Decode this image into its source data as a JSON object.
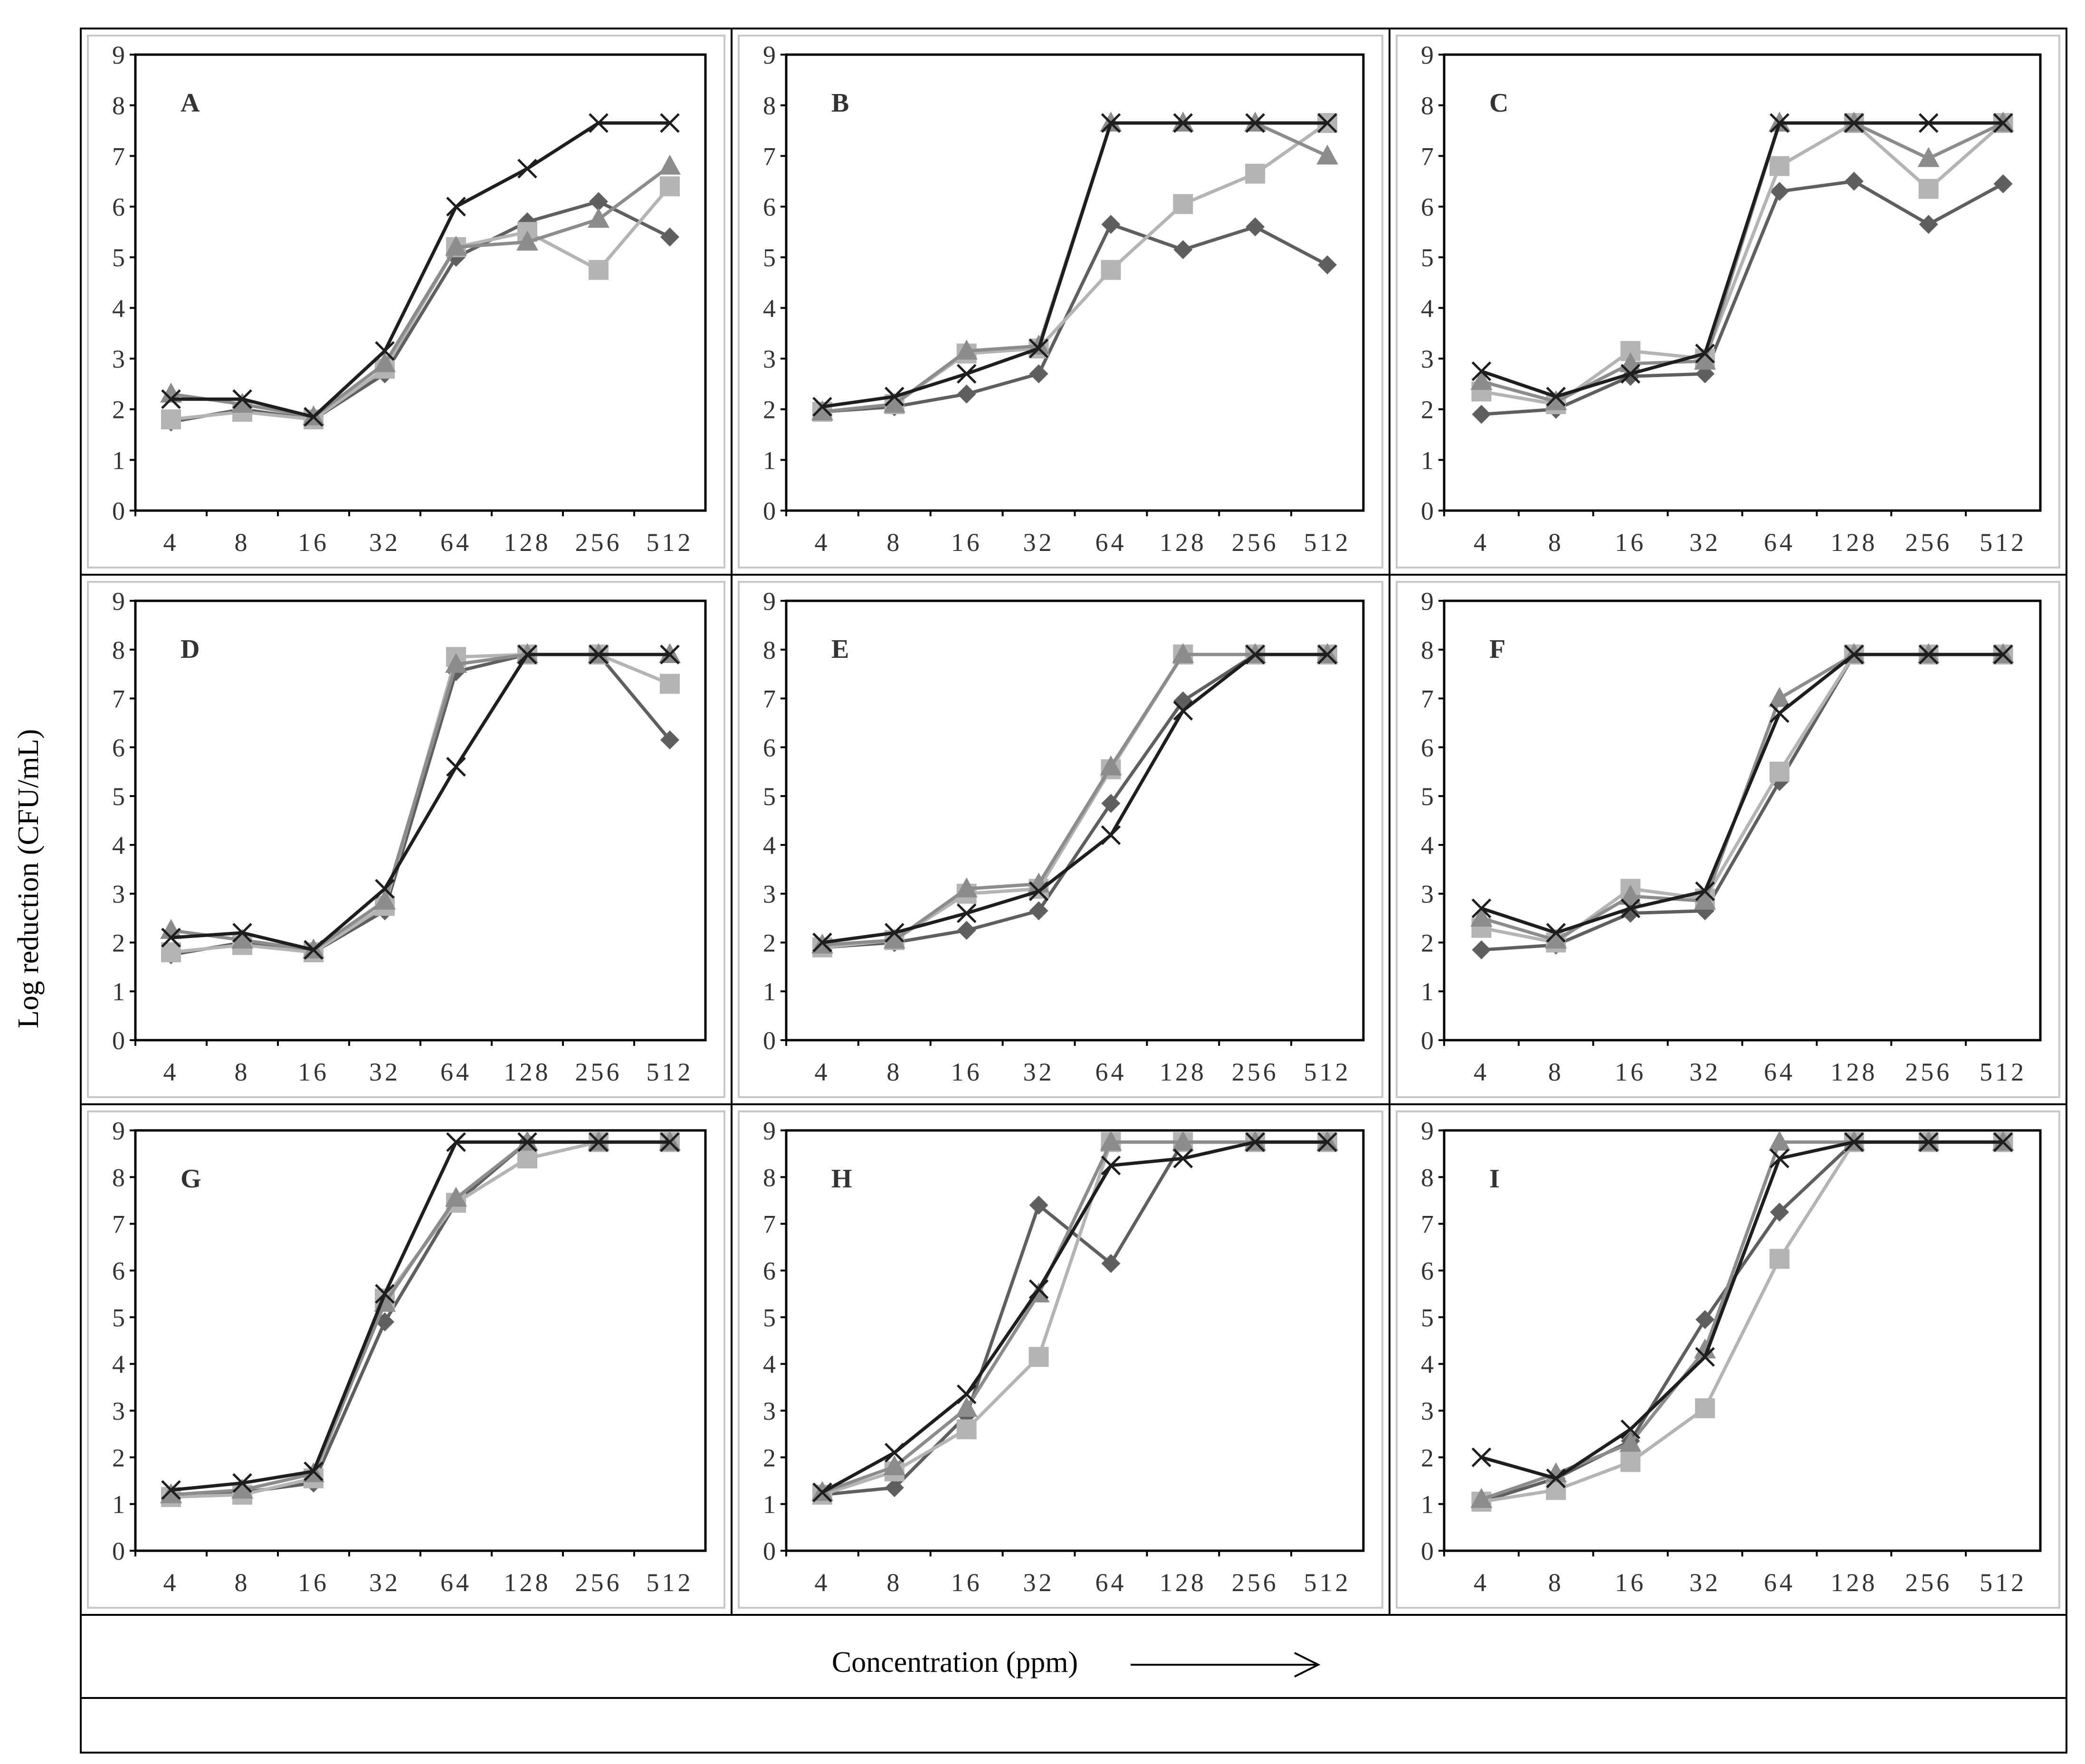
{
  "ylabel": "Log reduction (CFU/mL)",
  "xlabel": "Concentration (ppm)",
  "arrow": "→",
  "colors": {
    "diamond": "#5f5f5f",
    "square": "#b4b4b4",
    "triangle": "#8c8c8c",
    "cross": "#1e1e1e",
    "frame": "#000000",
    "panel_border": "#c8c8c8"
  },
  "chart_data": [
    {
      "type": "line",
      "title": "A",
      "categories": [
        "4",
        "8",
        "16",
        "32",
        "64",
        "128",
        "256",
        "512"
      ],
      "ylim": [
        0,
        9
      ],
      "yticks": [
        "0",
        "1",
        "2",
        "3",
        "4",
        "5",
        "6",
        "7",
        "8",
        "9"
      ],
      "series": [
        {
          "name": "diamond",
          "values": [
            1.75,
            2.0,
            1.8,
            2.7,
            5.0,
            5.7,
            6.1,
            5.4
          ]
        },
        {
          "name": "square",
          "values": [
            1.8,
            1.95,
            1.8,
            2.8,
            5.2,
            5.5,
            4.75,
            6.4
          ]
        },
        {
          "name": "triangle",
          "values": [
            2.3,
            2.1,
            1.85,
            2.9,
            5.2,
            5.3,
            5.75,
            6.8
          ]
        },
        {
          "name": "cross",
          "values": [
            2.2,
            2.2,
            1.85,
            3.15,
            6.0,
            6.75,
            7.65,
            7.65
          ]
        }
      ]
    },
    {
      "type": "line",
      "title": "B",
      "categories": [
        "4",
        "8",
        "16",
        "32",
        "64",
        "128",
        "256",
        "512"
      ],
      "ylim": [
        0,
        9
      ],
      "yticks": [
        "0",
        "1",
        "2",
        "3",
        "4",
        "5",
        "6",
        "7",
        "8",
        "9"
      ],
      "series": [
        {
          "name": "diamond",
          "values": [
            1.95,
            2.05,
            2.3,
            2.7,
            5.65,
            5.15,
            5.6,
            4.85
          ]
        },
        {
          "name": "square",
          "values": [
            1.95,
            2.1,
            3.1,
            3.2,
            4.75,
            6.05,
            6.65,
            7.65
          ]
        },
        {
          "name": "triangle",
          "values": [
            1.95,
            2.1,
            3.15,
            3.25,
            7.65,
            7.65,
            7.65,
            7.0
          ]
        },
        {
          "name": "cross",
          "values": [
            2.05,
            2.25,
            2.7,
            3.2,
            7.65,
            7.65,
            7.65,
            7.65
          ]
        }
      ]
    },
    {
      "type": "line",
      "title": "C",
      "categories": [
        "4",
        "8",
        "16",
        "32",
        "64",
        "128",
        "256",
        "512"
      ],
      "ylim": [
        0,
        9
      ],
      "yticks": [
        "0",
        "1",
        "2",
        "3",
        "4",
        "5",
        "6",
        "7",
        "8",
        "9"
      ],
      "series": [
        {
          "name": "diamond",
          "values": [
            1.9,
            2.0,
            2.65,
            2.7,
            6.3,
            6.5,
            5.65,
            6.45
          ]
        },
        {
          "name": "square",
          "values": [
            2.35,
            2.1,
            3.15,
            3.0,
            6.8,
            7.65,
            6.35,
            7.65
          ]
        },
        {
          "name": "triangle",
          "values": [
            2.55,
            2.15,
            2.9,
            2.95,
            7.65,
            7.65,
            6.95,
            7.65
          ]
        },
        {
          "name": "cross",
          "values": [
            2.75,
            2.25,
            2.7,
            3.1,
            7.65,
            7.65,
            7.65,
            7.65
          ]
        }
      ]
    },
    {
      "type": "line",
      "title": "D",
      "categories": [
        "4",
        "8",
        "16",
        "32",
        "64",
        "128",
        "256",
        "512"
      ],
      "ylim": [
        0,
        9
      ],
      "yticks": [
        "0",
        "1",
        "2",
        "3",
        "4",
        "5",
        "6",
        "7",
        "8",
        "9"
      ],
      "series": [
        {
          "name": "diamond",
          "values": [
            1.75,
            2.0,
            1.8,
            2.65,
            7.55,
            7.9,
            7.9,
            6.15
          ]
        },
        {
          "name": "square",
          "values": [
            1.8,
            1.95,
            1.8,
            2.75,
            7.85,
            7.9,
            7.9,
            7.3
          ]
        },
        {
          "name": "triangle",
          "values": [
            2.25,
            2.05,
            1.85,
            2.85,
            7.7,
            7.9,
            7.9,
            7.9
          ]
        },
        {
          "name": "cross",
          "values": [
            2.1,
            2.2,
            1.85,
            3.1,
            5.6,
            7.9,
            7.9,
            7.9
          ]
        }
      ]
    },
    {
      "type": "line",
      "title": "E",
      "categories": [
        "4",
        "8",
        "16",
        "32",
        "64",
        "128",
        "256",
        "512"
      ],
      "ylim": [
        0,
        9
      ],
      "yticks": [
        "0",
        "1",
        "2",
        "3",
        "4",
        "5",
        "6",
        "7",
        "8",
        "9"
      ],
      "series": [
        {
          "name": "diamond",
          "values": [
            1.9,
            2.0,
            2.25,
            2.65,
            4.85,
            6.95,
            7.9,
            7.9
          ]
        },
        {
          "name": "square",
          "values": [
            1.9,
            2.05,
            3.0,
            3.1,
            5.55,
            7.9,
            7.9,
            7.9
          ]
        },
        {
          "name": "triangle",
          "values": [
            1.95,
            2.05,
            3.1,
            3.2,
            5.6,
            7.9,
            7.9,
            7.9
          ]
        },
        {
          "name": "cross",
          "values": [
            2.0,
            2.2,
            2.6,
            3.05,
            4.2,
            6.75,
            7.9,
            7.9
          ]
        }
      ]
    },
    {
      "type": "line",
      "title": "F",
      "categories": [
        "4",
        "8",
        "16",
        "32",
        "64",
        "128",
        "256",
        "512"
      ],
      "ylim": [
        0,
        9
      ],
      "yticks": [
        "0",
        "1",
        "2",
        "3",
        "4",
        "5",
        "6",
        "7",
        "8",
        "9"
      ],
      "series": [
        {
          "name": "diamond",
          "values": [
            1.85,
            1.95,
            2.6,
            2.65,
            5.3,
            7.9,
            7.9,
            7.9
          ]
        },
        {
          "name": "square",
          "values": [
            2.3,
            2.0,
            3.1,
            2.9,
            5.5,
            7.9,
            7.9,
            7.9
          ]
        },
        {
          "name": "triangle",
          "values": [
            2.5,
            2.05,
            2.95,
            2.85,
            7.0,
            7.9,
            7.9,
            7.9
          ]
        },
        {
          "name": "cross",
          "values": [
            2.7,
            2.2,
            2.7,
            3.05,
            6.7,
            7.9,
            7.9,
            7.9
          ]
        }
      ]
    },
    {
      "type": "line",
      "title": "G",
      "categories": [
        "4",
        "8",
        "16",
        "32",
        "64",
        "128",
        "256",
        "512"
      ],
      "ylim": [
        0,
        9
      ],
      "yticks": [
        "0",
        "1",
        "2",
        "3",
        "4",
        "5",
        "6",
        "7",
        "8",
        "9"
      ],
      "series": [
        {
          "name": "diamond",
          "values": [
            1.2,
            1.25,
            1.45,
            4.9,
            7.45,
            8.75,
            8.75,
            8.75
          ]
        },
        {
          "name": "square",
          "values": [
            1.15,
            1.2,
            1.55,
            5.4,
            7.45,
            8.4,
            8.75,
            8.75
          ]
        },
        {
          "name": "triangle",
          "values": [
            1.2,
            1.3,
            1.65,
            5.3,
            7.55,
            8.75,
            8.75,
            8.75
          ]
        },
        {
          "name": "cross",
          "values": [
            1.3,
            1.45,
            1.7,
            5.5,
            8.75,
            8.75,
            8.75,
            8.75
          ]
        }
      ]
    },
    {
      "type": "line",
      "title": "H",
      "categories": [
        "4",
        "8",
        "16",
        "32",
        "64",
        "128",
        "256",
        "512"
      ],
      "ylim": [
        0,
        9
      ],
      "yticks": [
        "0",
        "1",
        "2",
        "3",
        "4",
        "5",
        "6",
        "7",
        "8",
        "9"
      ],
      "series": [
        {
          "name": "diamond",
          "values": [
            1.2,
            1.35,
            2.9,
            7.4,
            6.15,
            8.75,
            8.75,
            8.75
          ]
        },
        {
          "name": "square",
          "values": [
            1.2,
            1.7,
            2.6,
            4.15,
            8.75,
            8.75,
            8.75,
            8.75
          ]
        },
        {
          "name": "triangle",
          "values": [
            1.25,
            1.8,
            3.05,
            5.5,
            8.75,
            8.75,
            8.75,
            8.75
          ]
        },
        {
          "name": "cross",
          "values": [
            1.25,
            2.1,
            3.35,
            5.6,
            8.25,
            8.4,
            8.75,
            8.75
          ]
        }
      ]
    },
    {
      "type": "line",
      "title": "I",
      "categories": [
        "4",
        "8",
        "16",
        "32",
        "64",
        "128",
        "256",
        "512"
      ],
      "ylim": [
        0,
        9
      ],
      "yticks": [
        "0",
        "1",
        "2",
        "3",
        "4",
        "5",
        "6",
        "7",
        "8",
        "9"
      ],
      "series": [
        {
          "name": "diamond",
          "values": [
            1.05,
            1.55,
            2.35,
            4.95,
            7.25,
            8.75,
            8.75,
            8.75
          ]
        },
        {
          "name": "square",
          "values": [
            1.05,
            1.3,
            1.9,
            3.05,
            6.25,
            8.75,
            8.75,
            8.75
          ]
        },
        {
          "name": "triangle",
          "values": [
            1.1,
            1.65,
            2.3,
            4.3,
            8.75,
            8.75,
            8.75,
            8.75
          ]
        },
        {
          "name": "cross",
          "values": [
            2.0,
            1.55,
            2.6,
            4.15,
            8.4,
            8.75,
            8.75,
            8.75
          ]
        }
      ]
    }
  ]
}
